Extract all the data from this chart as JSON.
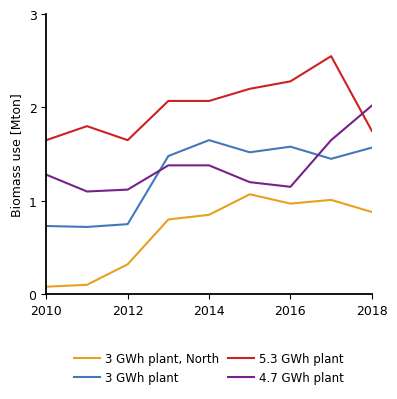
{
  "years": [
    2010,
    2011,
    2012,
    2013,
    2014,
    2015,
    2016,
    2017,
    2018
  ],
  "series": {
    "3 GWh plant, North": {
      "values": [
        0.08,
        0.1,
        0.32,
        0.8,
        0.85,
        1.07,
        0.97,
        1.01,
        0.88
      ],
      "color": "#E8A020",
      "linewidth": 1.5
    },
    "3 GWh plant": {
      "values": [
        0.73,
        0.72,
        0.75,
        1.48,
        1.65,
        1.52,
        1.58,
        1.45,
        1.57
      ],
      "color": "#4477BB",
      "linewidth": 1.5
    },
    "5.3 GWh plant": {
      "values": [
        1.65,
        1.8,
        1.65,
        2.07,
        2.07,
        2.2,
        2.28,
        2.55,
        1.75
      ],
      "color": "#CC2222",
      "linewidth": 1.5
    },
    "4.7 GWh plant": {
      "values": [
        1.28,
        1.1,
        1.12,
        1.38,
        1.38,
        1.2,
        1.15,
        1.65,
        2.02
      ],
      "color": "#772288",
      "linewidth": 1.5
    }
  },
  "ylabel": "Biomass use [Mton]",
  "ylim": [
    0,
    3
  ],
  "yticks": [
    0,
    1,
    2,
    3
  ],
  "xlim": [
    2010,
    2018
  ],
  "xticks": [
    2010,
    2012,
    2014,
    2016,
    2018
  ],
  "legend_order": [
    "3 GWh plant, North",
    "3 GWh plant",
    "5.3 GWh plant",
    "4.7 GWh plant"
  ],
  "background_color": "#ffffff",
  "axis_fontsize": 9,
  "tick_fontsize": 9,
  "legend_fontsize": 8.5
}
